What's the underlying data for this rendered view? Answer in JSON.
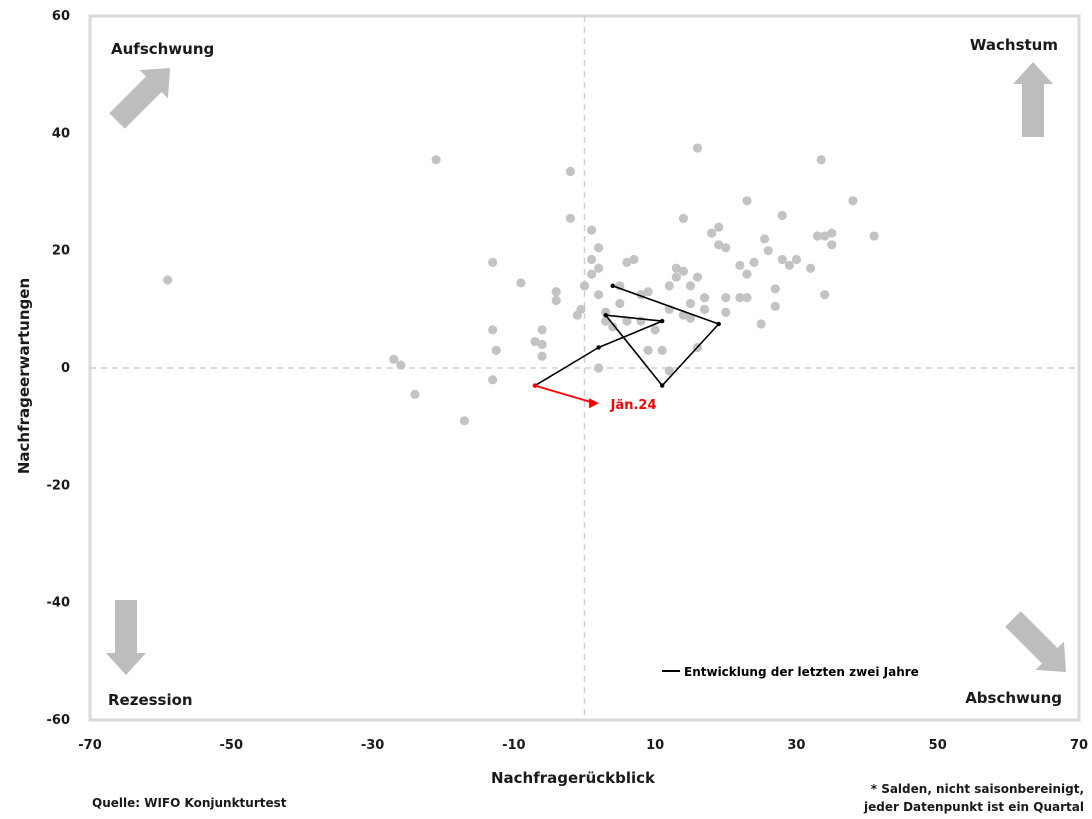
{
  "chart_data": {
    "type": "scatter",
    "xlabel": "Nachfragerückblick",
    "ylabel": "Nachfrageerwartungen",
    "xlim": [
      -70,
      70
    ],
    "ylim": [
      -60,
      60
    ],
    "xticks": [
      "-70",
      "-50",
      "-30",
      "-10",
      "10",
      "30",
      "50",
      "70"
    ],
    "yticks": [
      "60",
      "40",
      "20",
      "0",
      "-20",
      "-40",
      "-60"
    ],
    "grid": false,
    "reference_lines": [
      {
        "axis": "x",
        "value": 0,
        "style": "dashed"
      },
      {
        "axis": "y",
        "value": 0,
        "style": "dashed"
      }
    ],
    "quadrant_labels": {
      "top_left": "Aufschwung",
      "top_right": "Wachstum",
      "bottom_left": "Rezession",
      "bottom_right": "Abschwung"
    },
    "series": [
      {
        "color": "#c3c3c3",
        "points": [
          [
            -59,
            15
          ],
          [
            -21,
            35.5
          ],
          [
            -27,
            1.5
          ],
          [
            -26,
            0.5
          ],
          [
            -24,
            -4.5
          ],
          [
            -17,
            -9
          ],
          [
            -13,
            18
          ],
          [
            -12.5,
            3
          ],
          [
            -13,
            6.5
          ],
          [
            -13,
            -2
          ],
          [
            -9,
            14.5
          ],
          [
            -7,
            4.5
          ],
          [
            -6,
            6.5
          ],
          [
            -6,
            2
          ],
          [
            -4,
            13
          ],
          [
            -4,
            11.5
          ],
          [
            -6,
            4
          ],
          [
            -2,
            33.5
          ],
          [
            -2,
            25.5
          ],
          [
            -1,
            9
          ],
          [
            -0.5,
            10
          ],
          [
            0,
            14
          ],
          [
            1,
            23.5
          ],
          [
            1,
            18.5
          ],
          [
            1,
            16
          ],
          [
            2,
            20.5
          ],
          [
            2,
            17
          ],
          [
            2,
            12.5
          ],
          [
            3,
            9.5
          ],
          [
            3,
            8
          ],
          [
            4,
            7
          ],
          [
            5,
            14
          ],
          [
            5,
            11
          ],
          [
            6,
            18
          ],
          [
            6,
            8
          ],
          [
            7,
            18.5
          ],
          [
            8,
            8
          ],
          [
            8,
            12.5
          ],
          [
            9,
            3
          ],
          [
            9,
            13
          ],
          [
            10,
            6.5
          ],
          [
            11,
            3
          ],
          [
            12,
            14
          ],
          [
            12,
            10
          ],
          [
            13,
            15.5
          ],
          [
            13,
            17
          ],
          [
            14,
            25.5
          ],
          [
            14,
            16.5
          ],
          [
            14,
            9
          ],
          [
            15,
            14
          ],
          [
            15,
            11
          ],
          [
            15,
            8.5
          ],
          [
            16,
            15.5
          ],
          [
            16,
            3.5
          ],
          [
            16,
            37.5
          ],
          [
            17,
            12
          ],
          [
            17,
            10
          ],
          [
            18,
            23
          ],
          [
            19,
            21
          ],
          [
            19,
            24
          ],
          [
            20,
            20.5
          ],
          [
            20,
            12
          ],
          [
            20,
            9.5
          ],
          [
            22,
            17.5
          ],
          [
            22,
            12
          ],
          [
            23,
            28.5
          ],
          [
            23,
            16
          ],
          [
            23,
            12
          ],
          [
            24,
            18
          ],
          [
            25,
            7.5
          ],
          [
            25.5,
            22
          ],
          [
            26,
            20
          ],
          [
            27,
            13.5
          ],
          [
            27,
            10.5
          ],
          [
            28,
            26
          ],
          [
            28,
            18.5
          ],
          [
            29,
            17.5
          ],
          [
            30,
            18.5
          ],
          [
            32,
            17
          ],
          [
            33,
            22.5
          ],
          [
            33.5,
            35.5
          ],
          [
            34,
            12.5
          ],
          [
            34,
            22.5
          ],
          [
            35,
            21
          ],
          [
            35,
            23
          ],
          [
            38,
            28.5
          ],
          [
            41,
            22.5
          ],
          [
            12,
            -0.5
          ],
          [
            2,
            0
          ]
        ]
      },
      {
        "name": "Entwicklung der letzten zwei Jahre",
        "color": "#000000",
        "type": "path",
        "points": [
          [
            4,
            14
          ],
          [
            19,
            7.5
          ],
          [
            11,
            -3
          ],
          [
            3,
            9
          ],
          [
            11,
            8
          ],
          [
            2,
            3.5
          ],
          [
            -7,
            -3
          ]
        ]
      },
      {
        "color": "#ff0000",
        "type": "path",
        "points": [
          [
            -7,
            -3
          ],
          [
            1.5,
            -6
          ]
        ]
      }
    ],
    "annotations": [
      {
        "text": "Jän.24",
        "x": 2,
        "y": -6.5,
        "color": "#ff0000"
      }
    ],
    "legend": {
      "position": "bottom-right",
      "entry": "Entwicklung der letzten zwei Jahre"
    }
  },
  "footer": {
    "source": "Quelle: WIFO Konjunkturtest",
    "note_line1": "* Salden, nicht saisonbereinigt,",
    "note_line2": "jeder Datenpunkt ist ein Quartal"
  }
}
